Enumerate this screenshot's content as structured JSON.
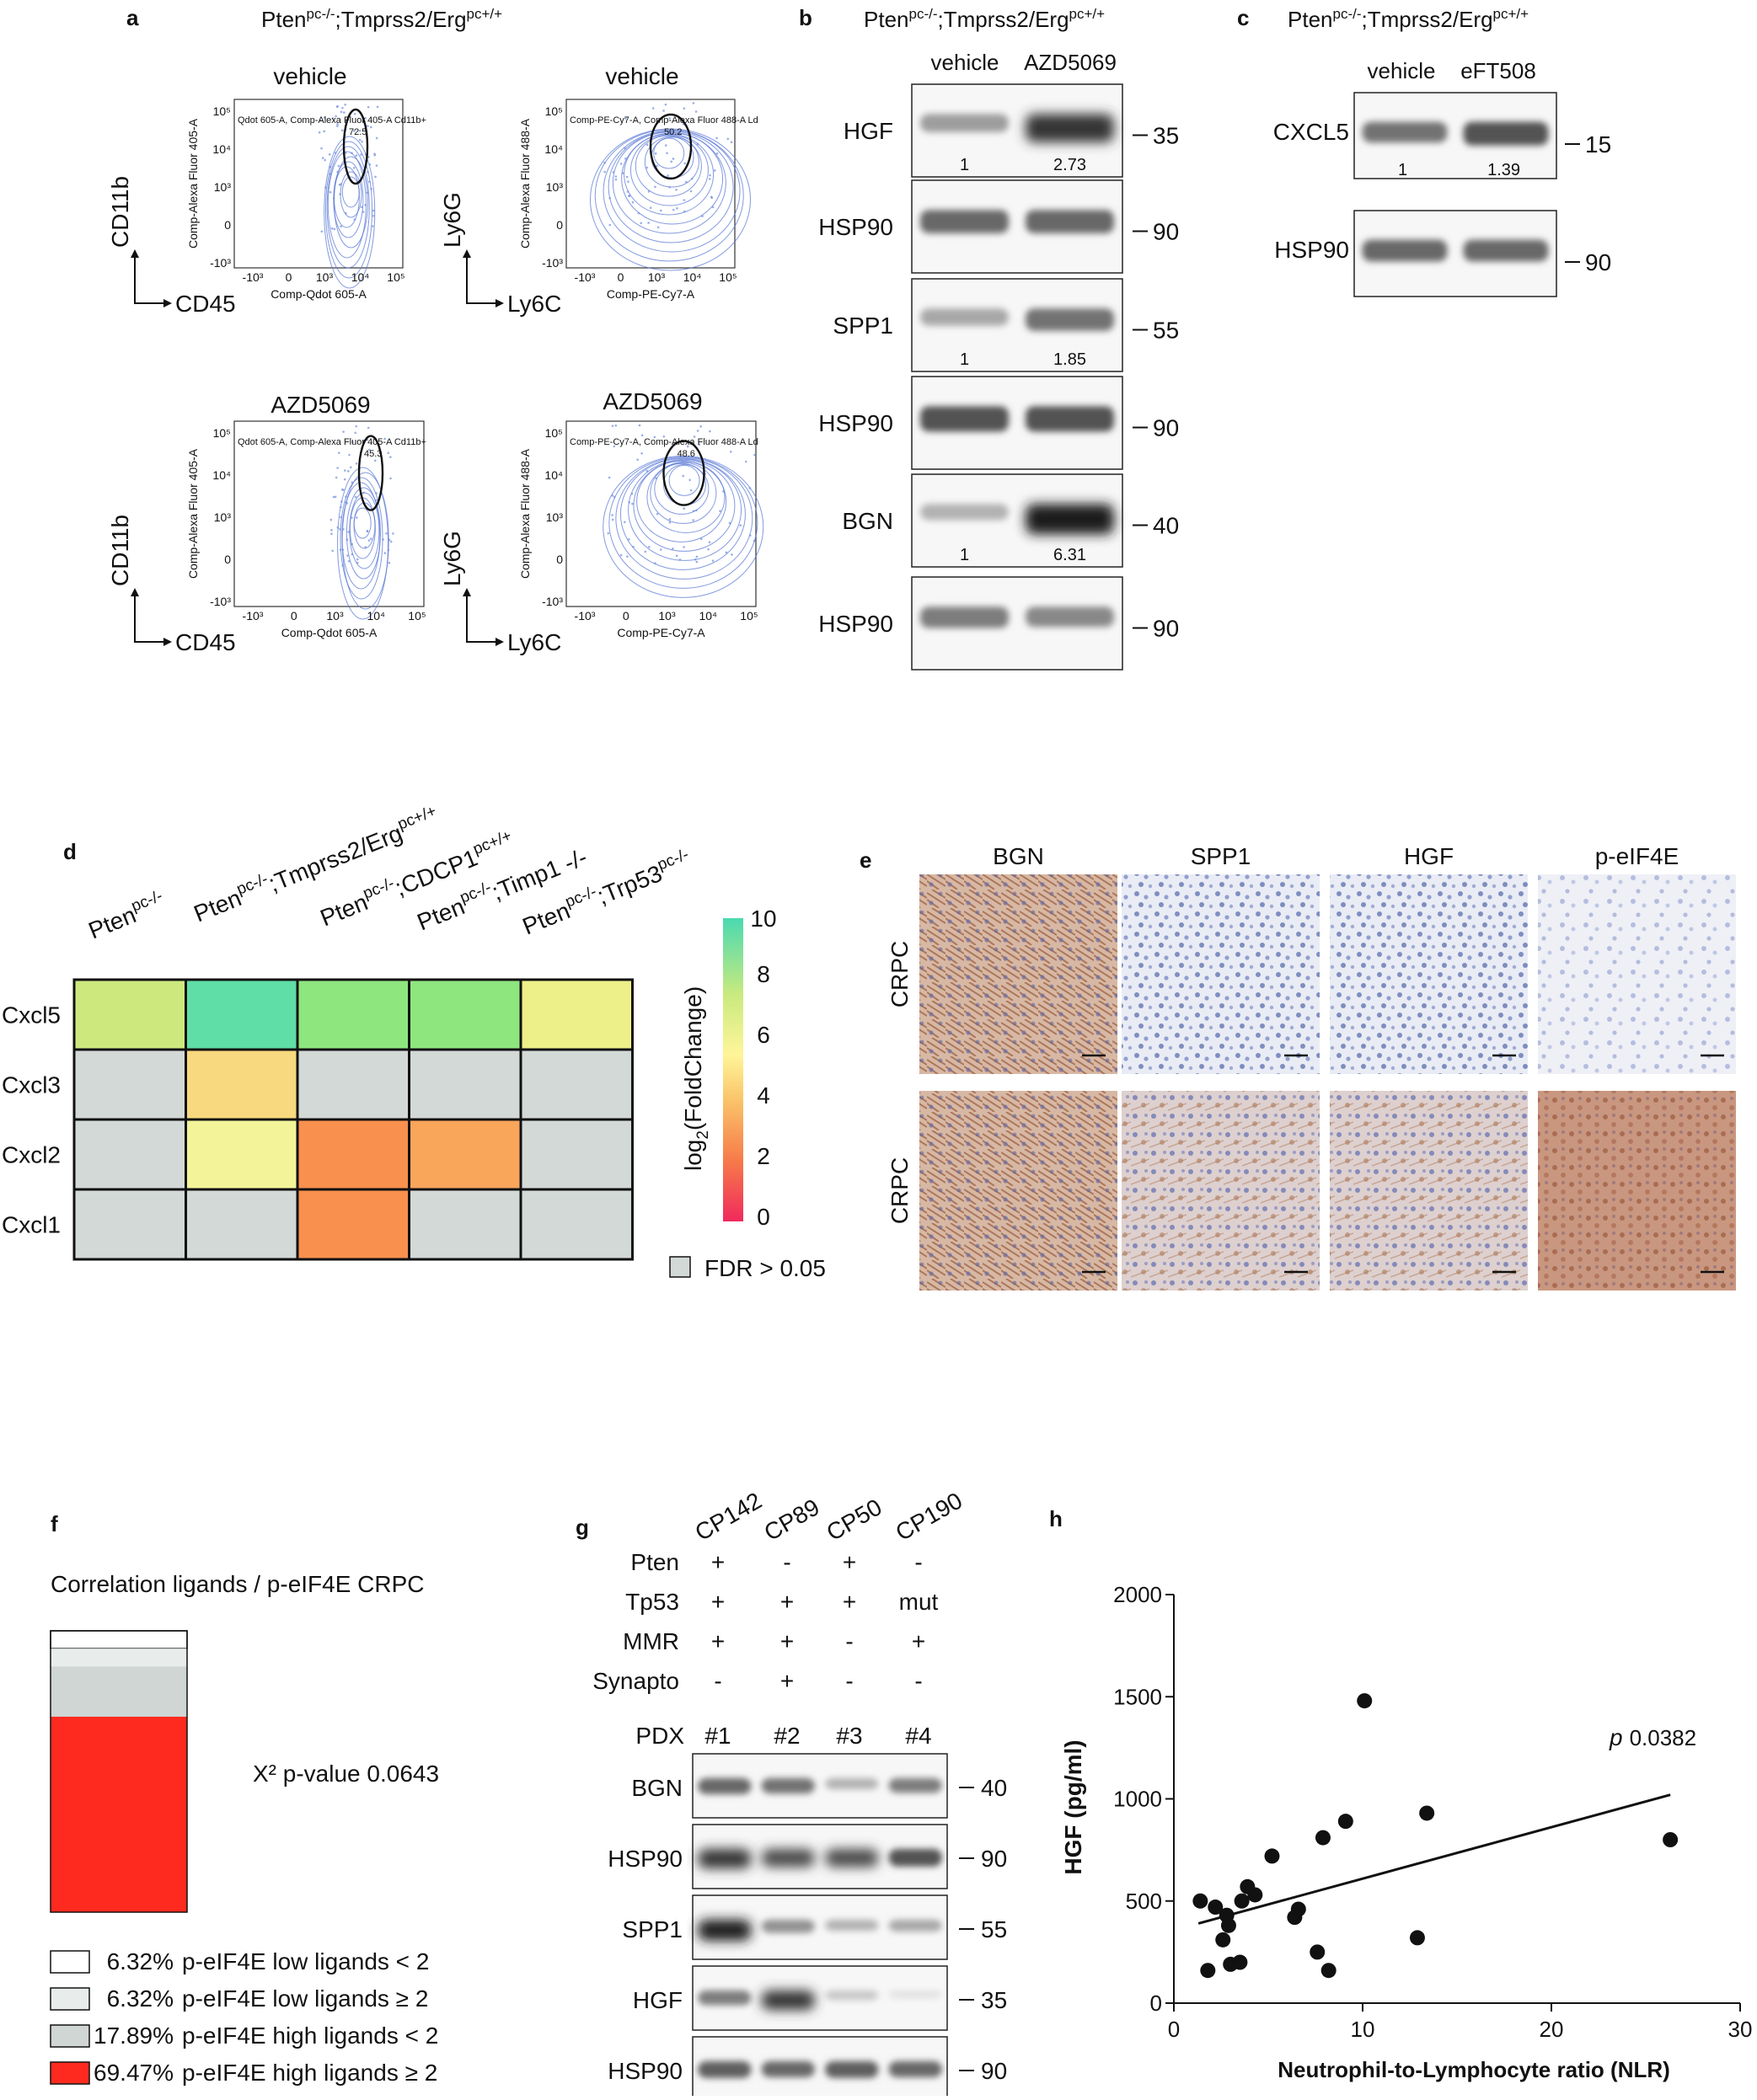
{
  "panel_a": {
    "label": "a",
    "genotype": {
      "base": "Pten",
      "sup1": "pc-/-",
      "mid": ";Tmprss2/Erg",
      "sup2": "pc+/+"
    },
    "plots": [
      {
        "title": "vehicle",
        "xmarker": "CD45",
        "ymarker": "CD11b",
        "xaxis": "Comp-Qdot 605-A",
        "yaxis": "Comp-Alexa Fluor 405-A",
        "gate_text": "Qdot 605-A, Comp-Alexa Fluor 405-A Cd11b+",
        "gate_value": "72.5"
      },
      {
        "title": "vehicle",
        "xmarker": "Ly6C",
        "ymarker": "Ly6G",
        "xaxis": "Comp-PE-Cy7-A",
        "yaxis": "Comp-Alexa Fluor 488-A",
        "gate_text": "Comp-PE-Cy7-A, Comp-Alexa Fluor 488-A Ld",
        "gate_value": "50.2"
      },
      {
        "title": "AZD5069",
        "xmarker": "CD45",
        "ymarker": "CD11b",
        "xaxis": "Comp-Qdot 605-A",
        "yaxis": "Comp-Alexa Fluor 405-A",
        "gate_text": "Qdot 605-A, Comp-Alexa Fluor 405-A Cd11b+",
        "gate_value": "45.3"
      },
      {
        "title": "AZD5069",
        "xmarker": "Ly6C",
        "ymarker": "Ly6G",
        "xaxis": "Comp-PE-Cy7-A",
        "yaxis": "Comp-Alexa Fluor 488-A",
        "gate_text": "Comp-PE-Cy7-A, Comp-Alexa Fluor 488-A Ld",
        "gate_value": "48.6"
      }
    ],
    "xticks": [
      "-10³",
      "0",
      "10³",
      "10⁴",
      "10⁵"
    ],
    "yticks": [
      "10⁵",
      "10⁴",
      "10³",
      "0",
      "-10³"
    ]
  },
  "panel_b": {
    "label": "b",
    "genotype": {
      "base": "Pten",
      "sup1": "pc-/-",
      "mid": ";Tmprss2/Erg",
      "sup2": "pc+/+"
    },
    "lanes": [
      "vehicle",
      "AZD5069"
    ],
    "blots": [
      {
        "protein": "HGF",
        "mw": "35",
        "quant": [
          "1",
          "2.73"
        ],
        "i1": 0.35,
        "i2": 0.85
      },
      {
        "protein": "HSP90",
        "mw": "90",
        "quant": [],
        "i1": 0.6,
        "i2": 0.6
      },
      {
        "protein": "SPP1",
        "mw": "55",
        "quant": [
          "1",
          "1.85"
        ],
        "i1": 0.3,
        "i2": 0.55
      },
      {
        "protein": "HSP90",
        "mw": "90",
        "quant": [],
        "i1": 0.7,
        "i2": 0.7
      },
      {
        "protein": "BGN",
        "mw": "40",
        "quant": [
          "1",
          "6.31"
        ],
        "i1": 0.25,
        "i2": 0.95
      },
      {
        "protein": "HSP90",
        "mw": "90",
        "quant": [],
        "i1": 0.5,
        "i2": 0.45
      }
    ]
  },
  "panel_c": {
    "label": "c",
    "genotype": {
      "base": "Pten",
      "sup1": "pc-/-",
      "mid": ";Tmprss2/Erg",
      "sup2": "pc+/+"
    },
    "lanes": [
      "vehicle",
      "eFT508"
    ],
    "blots": [
      {
        "protein": "CXCL5",
        "mw": "15",
        "quant": [
          "1",
          "1.39"
        ],
        "i1": 0.55,
        "i2": 0.7
      },
      {
        "protein": "HSP90",
        "mw": "90",
        "quant": [],
        "i1": 0.6,
        "i2": 0.6
      }
    ]
  },
  "panel_d": {
    "label": "d",
    "columns": [
      {
        "base": "Pten",
        "sup": "pc-/-",
        "rest": "",
        "sup2": ""
      },
      {
        "base": "Pten",
        "sup": "pc-/-",
        "rest": ";Tmprss2/Erg",
        "sup2": "pc+/+"
      },
      {
        "base": "Pten",
        "sup": "pc-/-",
        "rest": ";CDCP1",
        "sup2": "pc+/+"
      },
      {
        "base": "Pten",
        "sup": "pc-/-",
        "rest": ";Timp1 -/-",
        "sup2": ""
      },
      {
        "base": "Pten",
        "sup": "pc-/-",
        "rest": ";Trp53",
        "sup2": "pc-/-"
      }
    ],
    "rows": [
      "Cxcl5",
      "Cxcl3",
      "Cxcl2",
      "Cxcl1"
    ],
    "colorbar_ticks": [
      "10",
      "8",
      "6",
      "4",
      "2",
      "0"
    ],
    "colorbar_label": "log",
    "colorbar_label_sub": "2",
    "colorbar_label_rest": "(FoldChange)",
    "fdr_label": "FDR > 0.05",
    "colors": {
      "fdr": "#d3d9d6",
      "c_yellowgreen": "#cde97e",
      "c_teal": "#5fdea7",
      "c_green": "#8ee67f",
      "c_lightyellow": "#edf088",
      "c_gold": "#f8d97f",
      "c_paleyellow": "#f3f49a",
      "c_orange": "#f9904e",
      "c_lightorange": "#f9a55a"
    }
  },
  "panel_e": {
    "label": "e",
    "columns": [
      "BGN",
      "SPP1",
      "HGF",
      "p-eIF4E"
    ],
    "rows": [
      "CRPC",
      "CRPC"
    ]
  },
  "panel_f": {
    "label": "f",
    "title": "Correlation ligands / p-eIF4E CRPC",
    "pvalue_text": "X² p-value 0.0643",
    "segments": [
      {
        "pct": 6.32,
        "pct_label": "6.32%",
        "label": "p-eIF4E  low ligands < 2",
        "color": "#ffffff"
      },
      {
        "pct": 6.32,
        "pct_label": "6.32%",
        "label": "p-eIF4E  low ligands ≥ 2",
        "color": "#e8eceb"
      },
      {
        "pct": 17.89,
        "pct_label": "17.89%",
        "label": "p-eIF4E high ligands < 2",
        "color": "#cfd6d4"
      },
      {
        "pct": 69.47,
        "pct_label": "69.47%",
        "label": "p-eIF4E high ligands ≥ 2",
        "color": "#ff2a1f"
      }
    ]
  },
  "panel_g": {
    "label": "g",
    "samples": [
      "CP142",
      "CP89",
      "CP50",
      "CP190"
    ],
    "features": [
      {
        "name": "Pten",
        "values": [
          "+",
          "-",
          "+",
          "-"
        ]
      },
      {
        "name": "Tp53",
        "values": [
          "+",
          "+",
          "+",
          "mut"
        ]
      },
      {
        "name": "MMR",
        "values": [
          "+",
          "+",
          "-",
          "+"
        ]
      },
      {
        "name": "Synapto",
        "values": [
          "-",
          "+",
          "-",
          "-"
        ]
      }
    ],
    "pdx_label": "PDX",
    "pdx": [
      "#1",
      "#2",
      "#3",
      "#4"
    ],
    "blots": [
      {
        "protein": "BGN",
        "mw": "40",
        "int": [
          0.6,
          0.55,
          0.25,
          0.5
        ]
      },
      {
        "protein": "HSP90",
        "mw": "90",
        "int": [
          0.85,
          0.75,
          0.75,
          0.7
        ]
      },
      {
        "protein": "SPP1",
        "mw": "55",
        "int": [
          0.95,
          0.4,
          0.25,
          0.3
        ]
      },
      {
        "protein": "HGF",
        "mw": "35",
        "int": [
          0.5,
          0.85,
          0.15,
          0.02
        ]
      },
      {
        "protein": "HSP90",
        "mw": "90",
        "int": [
          0.65,
          0.6,
          0.65,
          0.6
        ]
      }
    ]
  },
  "panel_h": {
    "label": "h",
    "pvalue_prefix": "p",
    "pvalue": "0.0382",
    "chart_data": {
      "type": "scatter",
      "xlabel": "Neutrophil-to-Lymphocyte ratio (NLR)",
      "ylabel": "HGF (pg/ml)",
      "xlim": [
        0,
        30
      ],
      "ylim": [
        0,
        2000
      ],
      "xticks": [
        0,
        10,
        20,
        30
      ],
      "yticks": [
        0,
        500,
        1000,
        1500,
        2000
      ],
      "points": [
        {
          "x": 1.4,
          "y": 500
        },
        {
          "x": 1.8,
          "y": 160
        },
        {
          "x": 2.2,
          "y": 470
        },
        {
          "x": 2.6,
          "y": 310
        },
        {
          "x": 2.8,
          "y": 430
        },
        {
          "x": 2.9,
          "y": 380
        },
        {
          "x": 3.0,
          "y": 190
        },
        {
          "x": 3.5,
          "y": 200
        },
        {
          "x": 3.6,
          "y": 500
        },
        {
          "x": 3.9,
          "y": 570
        },
        {
          "x": 4.3,
          "y": 530
        },
        {
          "x": 5.2,
          "y": 720
        },
        {
          "x": 6.4,
          "y": 420
        },
        {
          "x": 6.6,
          "y": 460
        },
        {
          "x": 7.6,
          "y": 250
        },
        {
          "x": 7.9,
          "y": 810
        },
        {
          "x": 8.2,
          "y": 160
        },
        {
          "x": 9.1,
          "y": 890
        },
        {
          "x": 10.1,
          "y": 1480
        },
        {
          "x": 12.9,
          "y": 320
        },
        {
          "x": 13.4,
          "y": 930
        },
        {
          "x": 26.3,
          "y": 800
        }
      ],
      "regression": {
        "x": [
          1.3,
          26.3
        ],
        "y": [
          390,
          1020
        ]
      }
    }
  }
}
